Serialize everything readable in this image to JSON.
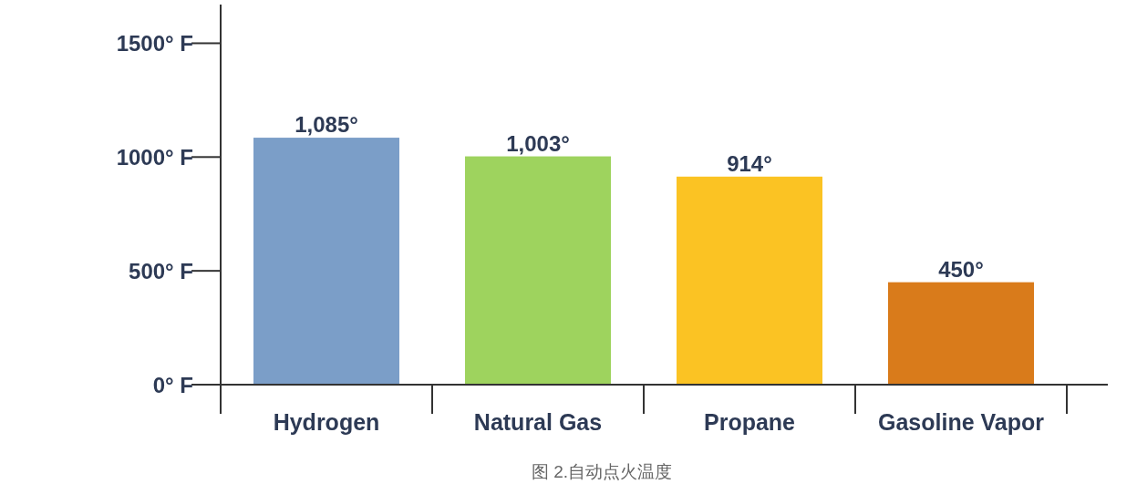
{
  "chart_data": {
    "type": "bar",
    "categories": [
      "Hydrogen",
      "Natural Gas",
      "Propane",
      "Gasoline Vapor"
    ],
    "values": [
      1085,
      1003,
      914,
      450
    ],
    "colors": [
      "#7b9ec8",
      "#9ed35e",
      "#fbc323",
      "#d97b1b"
    ],
    "value_labels": [
      "1,085°",
      "1,003°",
      "914°",
      "450°"
    ],
    "ylim": [
      0,
      1670
    ],
    "yticks": [
      {
        "value": 0,
        "label": "0° F"
      },
      {
        "value": 500,
        "label": "500° F"
      },
      {
        "value": 1000,
        "label": "1000° F"
      },
      {
        "value": 1500,
        "label": "1500° F"
      }
    ],
    "annotations": [
      "图 2.自动点火温度"
    ]
  }
}
